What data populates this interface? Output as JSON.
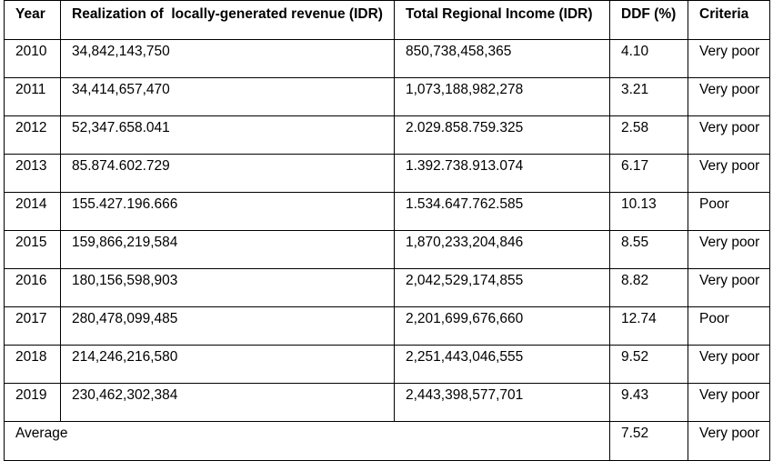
{
  "table": {
    "headers": [
      "Year",
      "Realization of  locally-generated revenue (IDR)",
      "Total Regional Income (IDR)",
      "DDF (%)",
      "Criteria"
    ],
    "rows": [
      [
        "2010",
        "34,842,143,750",
        "850,738,458,365",
        "4.10",
        "Very poor"
      ],
      [
        "2011",
        "34,414,657,470",
        "1,073,188,982,278",
        "3.21",
        "Very poor"
      ],
      [
        "2012",
        "52,347.658.041",
        "2.029.858.759.325",
        "2.58",
        "Very poor"
      ],
      [
        "2013",
        "85.874.602.729",
        "1.392.738.913.074",
        "6.17",
        "Very poor"
      ],
      [
        "2014",
        "155.427.196.666",
        "1.534.647.762.585",
        "10.13",
        "Poor"
      ],
      [
        "2015",
        "159,866,219,584",
        "1,870,233,204,846",
        "8.55",
        "Very poor"
      ],
      [
        "2016",
        "180,156,598,903",
        "2,042,529,174,855",
        "8.82",
        "Very poor"
      ],
      [
        "2017",
        "280,478,099,485",
        "2,201,699,676,660",
        "12.74",
        "Poor"
      ],
      [
        "2018",
        "214,246,216,580",
        "2,251,443,046,555",
        "9.52",
        "Very poor"
      ],
      [
        "2019",
        "230,462,302,384",
        "2,443,398,577,701",
        "9.43",
        "Very poor"
      ]
    ],
    "average": {
      "label": "Average",
      "ddf": "7.52",
      "criteria": "Very poor"
    }
  }
}
